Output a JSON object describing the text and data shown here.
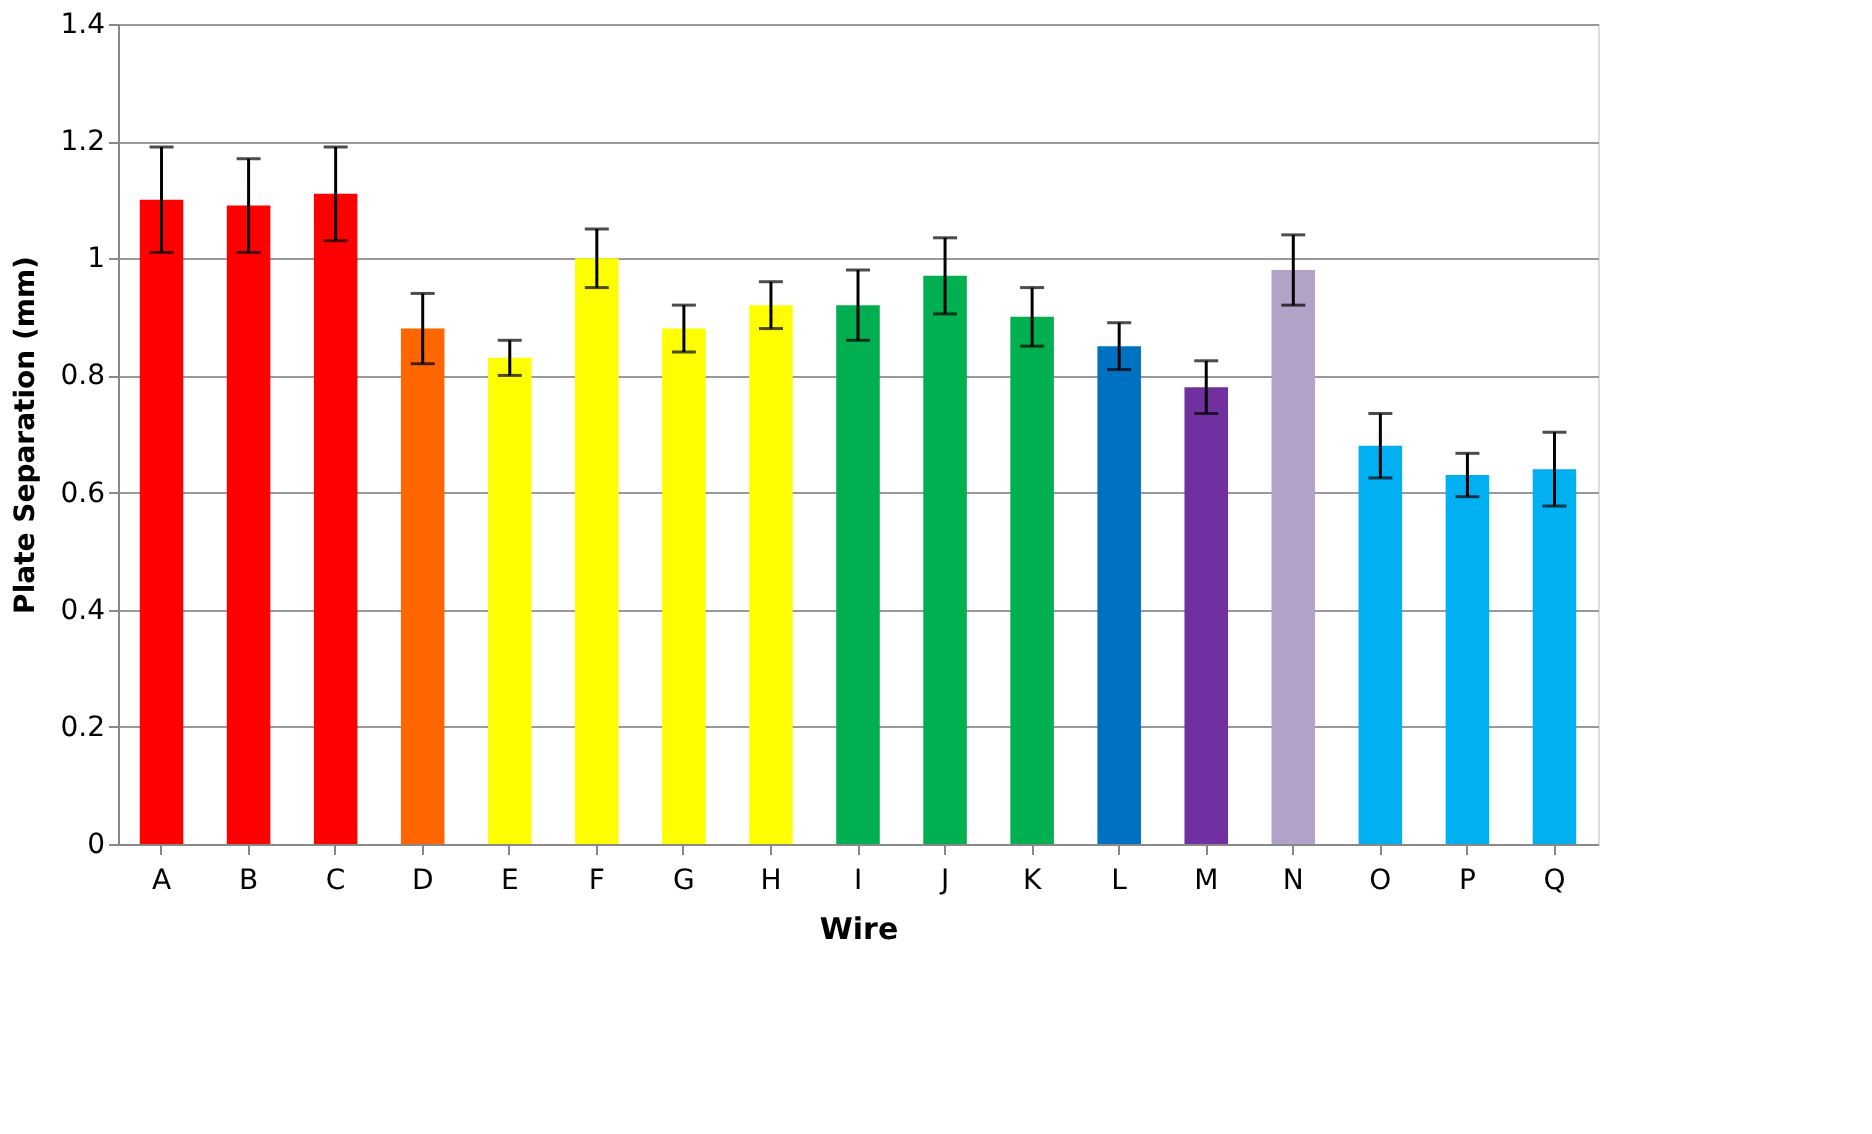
{
  "chart_data": {
    "type": "bar",
    "xlabel": "Wire",
    "ylabel": "Plate Separation (mm)",
    "categories": [
      "A",
      "B",
      "C",
      "D",
      "E",
      "F",
      "G",
      "H",
      "I",
      "J",
      "K",
      "L",
      "M",
      "N",
      "O",
      "P",
      "Q"
    ],
    "values": [
      1.1,
      1.09,
      1.11,
      0.88,
      0.83,
      1.0,
      0.88,
      0.92,
      0.92,
      0.97,
      0.9,
      0.85,
      0.78,
      0.98,
      0.68,
      0.63,
      0.64
    ],
    "errors": [
      0.09,
      0.08,
      0.08,
      0.06,
      0.03,
      0.05,
      0.04,
      0.04,
      0.06,
      0.065,
      0.05,
      0.04,
      0.045,
      0.06,
      0.055,
      0.037,
      0.063
    ],
    "colors": [
      "#ff0000",
      "#ff0000",
      "#ff0000",
      "#ff6600",
      "#ffff00",
      "#ffff00",
      "#ffff00",
      "#ffff00",
      "#00b050",
      "#00b050",
      "#00b050",
      "#0070c0",
      "#7030a0",
      "#b3a2c7",
      "#00b0f0",
      "#00b0f0",
      "#00b0f0"
    ],
    "ylim": [
      0,
      1.4
    ],
    "yticks": [
      0,
      0.2,
      0.4,
      0.6,
      0.8,
      1,
      1.2,
      1.4
    ],
    "grid": "y"
  }
}
